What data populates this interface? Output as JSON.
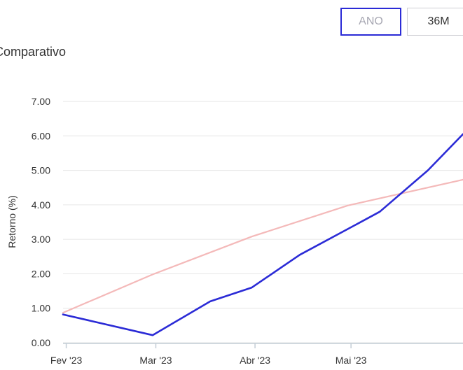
{
  "period_toggle": {
    "options": [
      {
        "label": "ANO",
        "active": true
      },
      {
        "label": "36M",
        "active": false
      }
    ]
  },
  "section": {
    "title": "Comparativo"
  },
  "colors": {
    "accent": "#2b2bd6",
    "series_primary": "#2b2bd6",
    "series_benchmark": "#f4b9b9",
    "grid": "#e6e6e6",
    "axis": "#c4cdd6"
  },
  "chart_data": {
    "type": "line",
    "ylabel": "Retorno (%)",
    "xlabel": "",
    "ylim": [
      0,
      7
    ],
    "yticks": [
      "0.00",
      "1.00",
      "2.00",
      "3.00",
      "4.00",
      "5.00",
      "6.00",
      "7.00"
    ],
    "x_tick_labels": [
      "Fev '23",
      "Mar '23",
      "Abr '23",
      "Mai '23"
    ],
    "x_tick_dates": [
      "2023-02-01",
      "2023-03-01",
      "2023-04-01",
      "2023-05-01"
    ],
    "xlim": [
      "2023-01-31",
      "2023-06-05"
    ],
    "grid": true,
    "series": [
      {
        "color": "#2b2bd6",
        "points": [
          {
            "x": "2023-01-31",
            "y": 0.82
          },
          {
            "x": "2023-02-28",
            "y": 0.22
          },
          {
            "x": "2023-03-18",
            "y": 1.2
          },
          {
            "x": "2023-03-31",
            "y": 1.6
          },
          {
            "x": "2023-04-15",
            "y": 2.55
          },
          {
            "x": "2023-04-30",
            "y": 3.3
          },
          {
            "x": "2023-05-10",
            "y": 3.8
          },
          {
            "x": "2023-05-25",
            "y": 5.0
          },
          {
            "x": "2023-06-05",
            "y": 6.05
          }
        ]
      },
      {
        "color": "#f4b9b9",
        "points": [
          {
            "x": "2023-01-31",
            "y": 0.87
          },
          {
            "x": "2023-02-28",
            "y": 1.98
          },
          {
            "x": "2023-03-31",
            "y": 3.08
          },
          {
            "x": "2023-04-30",
            "y": 3.98
          },
          {
            "x": "2023-06-05",
            "y": 4.73
          }
        ]
      }
    ]
  }
}
